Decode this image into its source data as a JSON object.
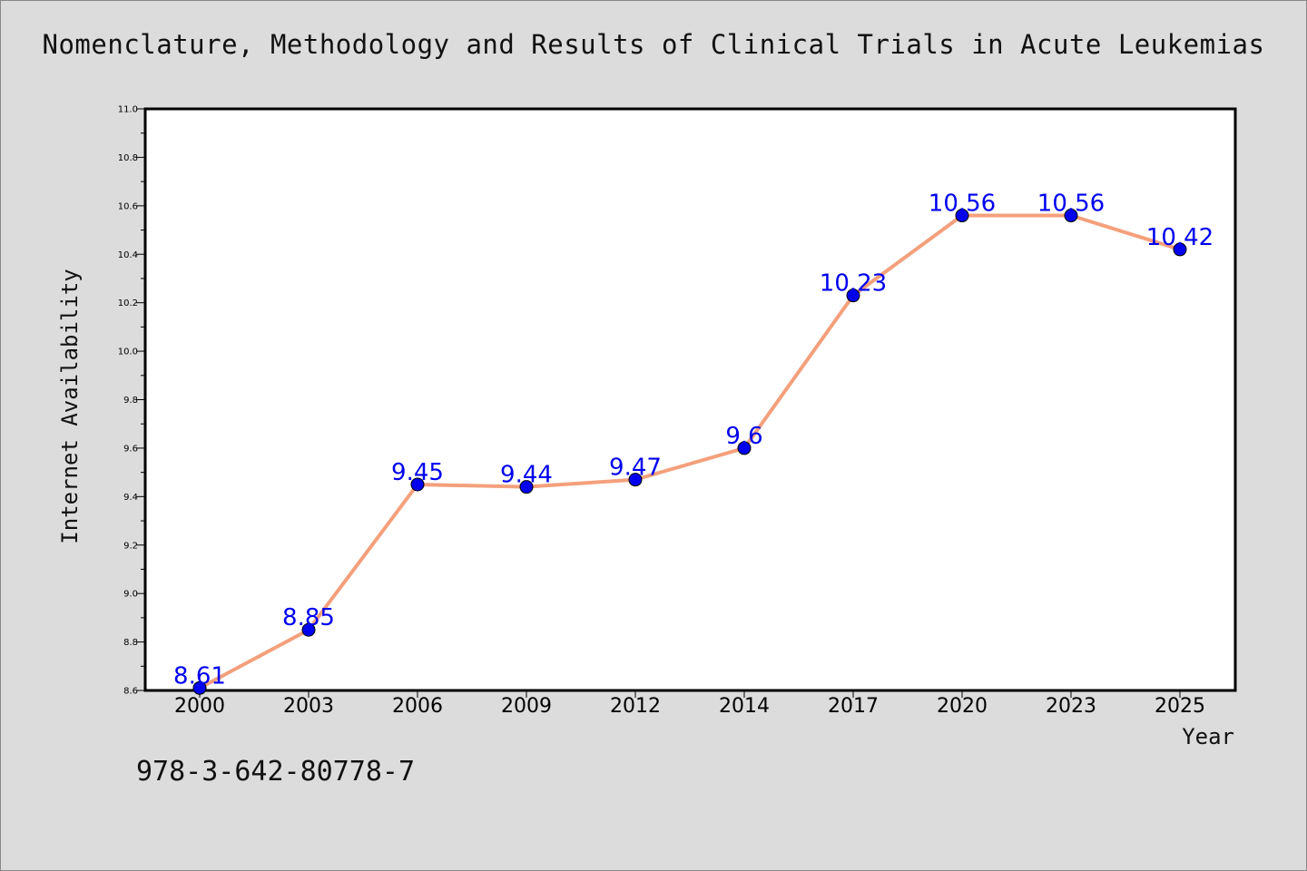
{
  "chart_data": {
    "type": "line",
    "title": "Nomenclature, Methodology and Results of Clinical Trials in Acute Leukemias",
    "xlabel": "Year",
    "ylabel": "Internet Availability",
    "categories": [
      "2000",
      "2003",
      "2006",
      "2009",
      "2012",
      "2014",
      "2017",
      "2020",
      "2023",
      "2025"
    ],
    "series": [
      {
        "values": [
          8.61,
          8.85,
          9.45,
          9.44,
          9.47,
          9.6,
          10.23,
          10.56,
          10.56,
          10.42
        ],
        "labels": [
          "8.61",
          "8.85",
          "9.45",
          "9.44",
          "9.47",
          "9.6",
          "10.23",
          "10.56",
          "10.56",
          "10.42"
        ],
        "line_color": "#f4a07c",
        "marker_color": "#0000ee",
        "label_color": "#0000ee"
      }
    ],
    "ylim": [
      8.6,
      11.0
    ],
    "yticks": [
      "8.6",
      "8.8",
      "9.0",
      "9.2",
      "9.4",
      "9.6",
      "9.8",
      "10.0",
      "10.2",
      "10.4",
      "10.6",
      "10.8",
      "11.0"
    ],
    "grid": false,
    "legend": "none"
  },
  "footnote": "978-3-642-80778-7"
}
